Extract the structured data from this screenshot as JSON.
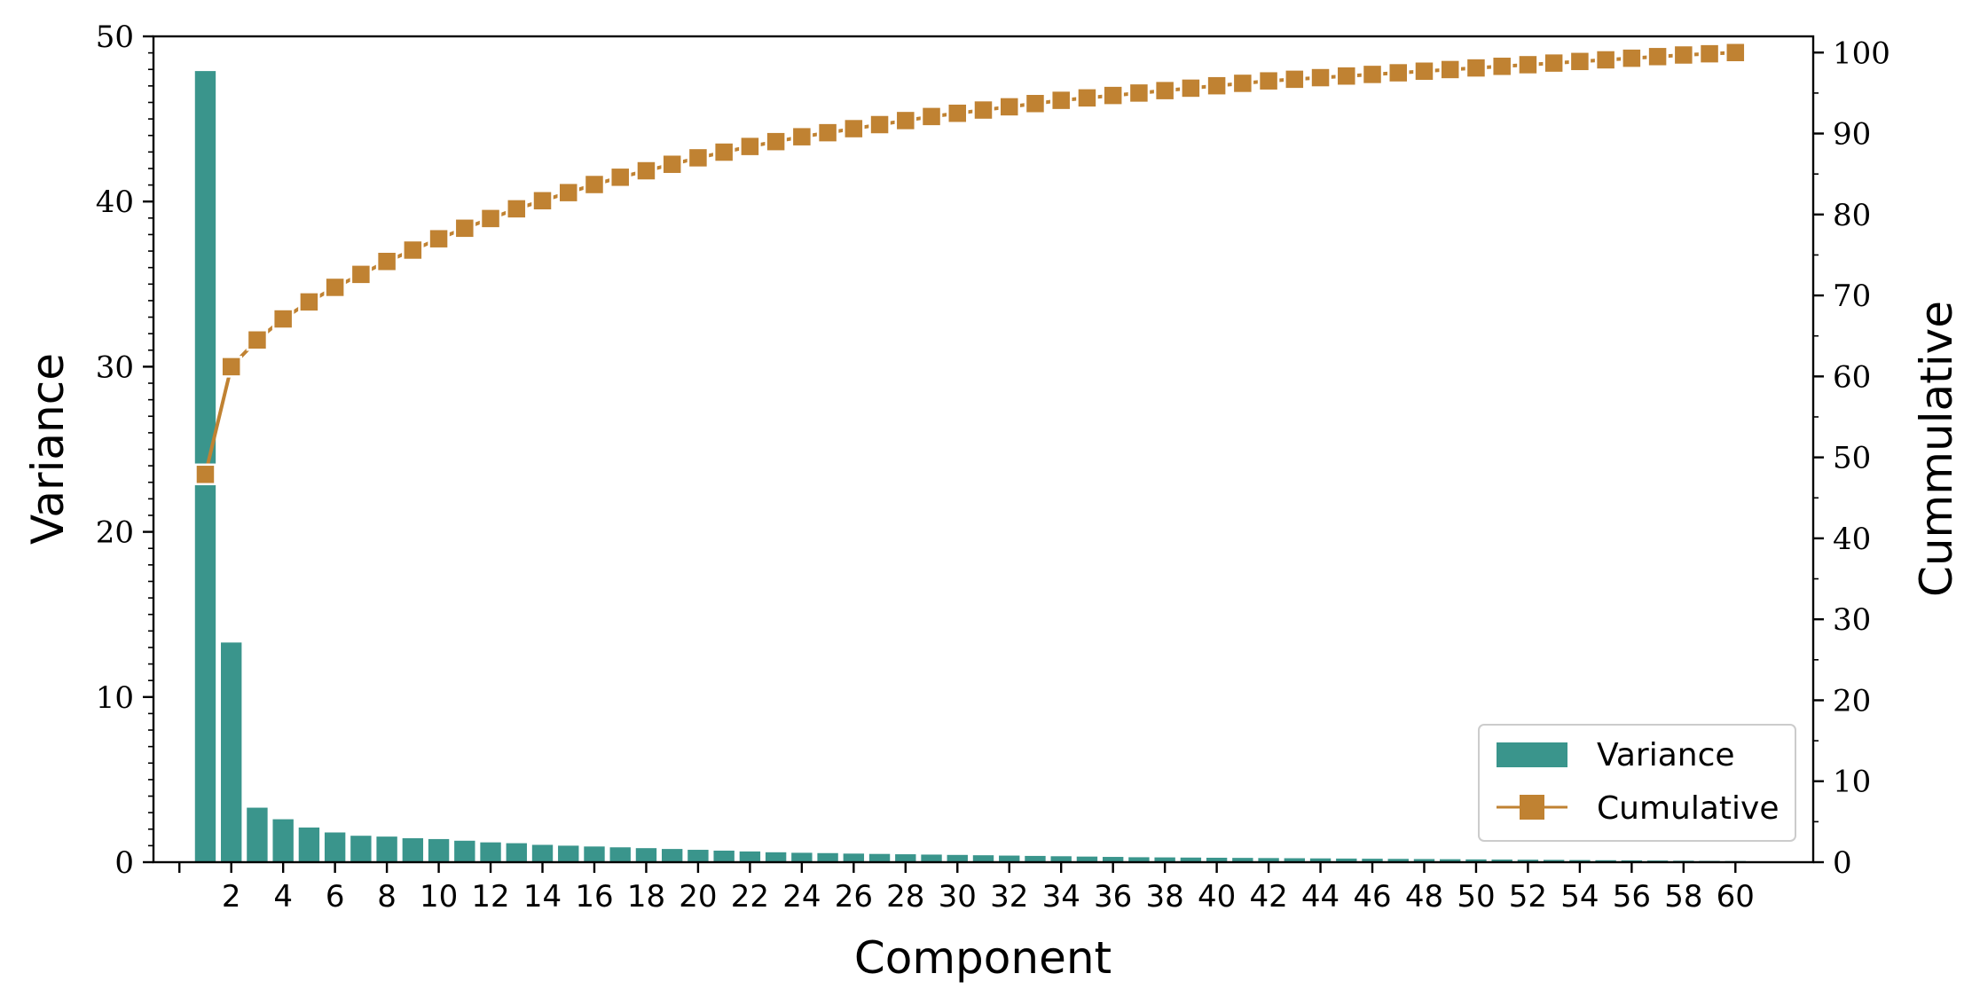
{
  "chart_data": {
    "type": "bar",
    "xlabel": "Component",
    "ylabel": "Variance",
    "y2label": "Cummulative",
    "xlim": [
      -1,
      63
    ],
    "ylim": [
      0,
      50
    ],
    "y2lim": [
      0,
      102
    ],
    "x": [
      1,
      2,
      3,
      4,
      5,
      6,
      7,
      8,
      9,
      10,
      11,
      12,
      13,
      14,
      15,
      16,
      17,
      18,
      19,
      20,
      21,
      22,
      23,
      24,
      25,
      26,
      27,
      28,
      29,
      30,
      31,
      32,
      33,
      34,
      35,
      36,
      37,
      38,
      39,
      40,
      41,
      42,
      43,
      44,
      45,
      46,
      47,
      48,
      49,
      50,
      51,
      52,
      53,
      54,
      55,
      56,
      57,
      58,
      59,
      60
    ],
    "x_ticks": [
      0,
      2,
      4,
      6,
      8,
      10,
      12,
      14,
      16,
      18,
      20,
      22,
      24,
      26,
      28,
      30,
      32,
      34,
      36,
      38,
      40,
      42,
      44,
      46,
      48,
      50,
      52,
      54,
      56,
      58,
      60
    ],
    "x_tick_labels": [
      "",
      "2",
      "4",
      "6",
      "8",
      "10",
      "12",
      "14",
      "16",
      "18",
      "20",
      "22",
      "24",
      "26",
      "28",
      "30",
      "32",
      "34",
      "36",
      "38",
      "40",
      "42",
      "44",
      "46",
      "48",
      "50",
      "52",
      "54",
      "56",
      "58",
      "60"
    ],
    "y_ticks": [
      0,
      10,
      20,
      30,
      40,
      50
    ],
    "y2_ticks": [
      0,
      10,
      20,
      30,
      40,
      50,
      60,
      70,
      80,
      90,
      100
    ],
    "series": [
      {
        "name": "Variance",
        "type": "bar",
        "axis": "left",
        "color": "#3a958c",
        "values": [
          47.9,
          13.3,
          3.3,
          2.6,
          2.1,
          1.8,
          1.6,
          1.55,
          1.45,
          1.4,
          1.3,
          1.2,
          1.15,
          1.05,
          1.0,
          0.95,
          0.9,
          0.85,
          0.8,
          0.75,
          0.7,
          0.65,
          0.6,
          0.57,
          0.55,
          0.52,
          0.5,
          0.48,
          0.46,
          0.44,
          0.42,
          0.4,
          0.38,
          0.36,
          0.34,
          0.32,
          0.3,
          0.29,
          0.28,
          0.27,
          0.26,
          0.25,
          0.24,
          0.23,
          0.22,
          0.21,
          0.2,
          0.19,
          0.18,
          0.17,
          0.16,
          0.15,
          0.14,
          0.13,
          0.12,
          0.11,
          0.1,
          0.09,
          0.08,
          0.07
        ]
      },
      {
        "name": "Cumulative",
        "type": "line",
        "marker": "square",
        "axis": "right",
        "color": "#c08232",
        "values": [
          47.9,
          61.2,
          64.5,
          67.1,
          69.2,
          71.0,
          72.6,
          74.2,
          75.6,
          77.0,
          78.3,
          79.5,
          80.7,
          81.7,
          82.7,
          83.7,
          84.6,
          85.4,
          86.2,
          87.0,
          87.7,
          88.4,
          89.0,
          89.6,
          90.1,
          90.6,
          91.1,
          91.6,
          92.1,
          92.5,
          92.9,
          93.3,
          93.7,
          94.1,
          94.4,
          94.7,
          95.0,
          95.3,
          95.6,
          95.9,
          96.2,
          96.5,
          96.7,
          96.9,
          97.1,
          97.3,
          97.5,
          97.7,
          97.9,
          98.1,
          98.3,
          98.5,
          98.7,
          98.9,
          99.1,
          99.3,
          99.5,
          99.7,
          99.85,
          100.0
        ]
      }
    ],
    "legend": {
      "position": "bottom-right",
      "entries": [
        "Variance",
        "Cumulative"
      ]
    },
    "grid": false
  }
}
